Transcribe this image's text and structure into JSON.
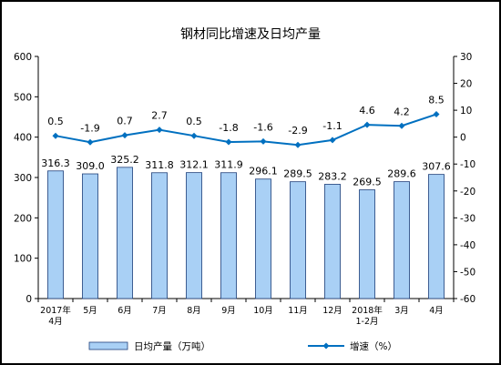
{
  "chart_data": {
    "type": "bar+line",
    "title": "钢材同比增速及日均产量",
    "categories": [
      [
        "2017年",
        "4月"
      ],
      [
        "5月"
      ],
      [
        "6月"
      ],
      [
        "7月"
      ],
      [
        "8月"
      ],
      [
        "9月"
      ],
      [
        "10月"
      ],
      [
        "11月"
      ],
      [
        "12月"
      ],
      [
        "2018年",
        "1-2月"
      ],
      [
        "3月"
      ],
      [
        "4月"
      ]
    ],
    "series": [
      {
        "name": "日均产量（万吨）",
        "type": "bar",
        "axis": "left",
        "color": "#a9d0f5",
        "edge_color": "#1f3f7a",
        "values": [
          316.3,
          309.0,
          325.2,
          311.8,
          312.1,
          311.9,
          296.1,
          289.5,
          283.2,
          269.5,
          289.6,
          307.6
        ],
        "labels": [
          "316.3",
          "309.0",
          "325.2",
          "311.8",
          "312.1",
          "311.9",
          "296.1",
          "289.5",
          "283.2",
          "269.5",
          "289.6",
          "307.6"
        ]
      },
      {
        "name": "增速（%）",
        "type": "line",
        "axis": "right",
        "color": "#0070c0",
        "values": [
          0.5,
          -1.9,
          0.7,
          2.7,
          0.5,
          -1.8,
          -1.6,
          -2.9,
          -1.1,
          4.6,
          4.2,
          8.5
        ],
        "labels": [
          "0.5",
          "-1.9",
          "0.7",
          "2.7",
          "0.5",
          "-1.8",
          "-1.6",
          "-2.9",
          "-1.1",
          "4.6",
          "4.2",
          "8.5"
        ]
      }
    ],
    "left_axis": {
      "min": 0,
      "max": 600,
      "step": 100
    },
    "right_axis": {
      "min": -60,
      "max": 30,
      "step": 10
    },
    "grid": false,
    "legend_position": "bottom"
  }
}
